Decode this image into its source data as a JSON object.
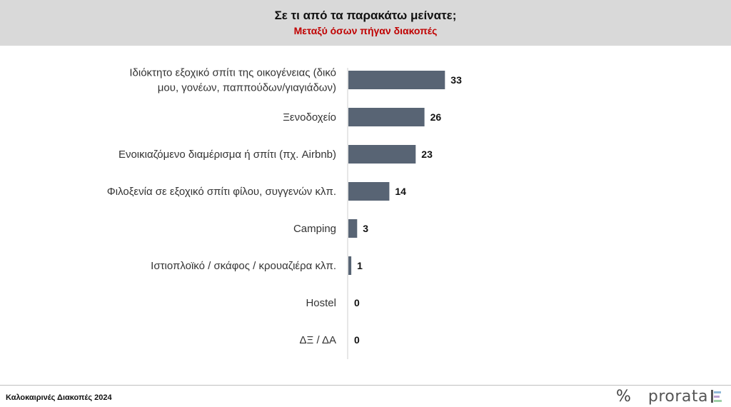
{
  "header": {
    "title": "Σε τι από τα παρακάτω μείνατε;",
    "subtitle": "Μεταξύ όσων πήγαν διακοπές"
  },
  "chart_data": {
    "type": "bar",
    "orientation": "horizontal",
    "categories": [
      [
        "Ιδιόκτητο εξοχικό σπίτι της οικογένειας (δικό",
        "μου, γονέων, παππούδων/γιαγιάδων)"
      ],
      [
        "Ξενοδοχείο"
      ],
      [
        "Ενοικιαζόμενο διαμέρισμα ή σπίτι (πχ. Airbnb)"
      ],
      [
        "Φιλοξενία σε εξοχικό σπίτι φίλου, συγγενών κλπ."
      ],
      [
        "Camping"
      ],
      [
        "Ιστιοπλοϊκό / σκάφος / κρουαζιέρα κλπ."
      ],
      [
        "Hostel"
      ],
      [
        "ΔΞ / ΔΑ"
      ]
    ],
    "values": [
      33,
      26,
      23,
      14,
      3,
      1,
      0,
      0
    ],
    "xlim": [
      0,
      100
    ],
    "grid": false,
    "legend": "none",
    "bar_color": "#586474"
  },
  "footer": {
    "text": "Καλοκαιρινές Διακοπές 2024",
    "brand_symbol": "%",
    "brand_name": "prorata"
  }
}
